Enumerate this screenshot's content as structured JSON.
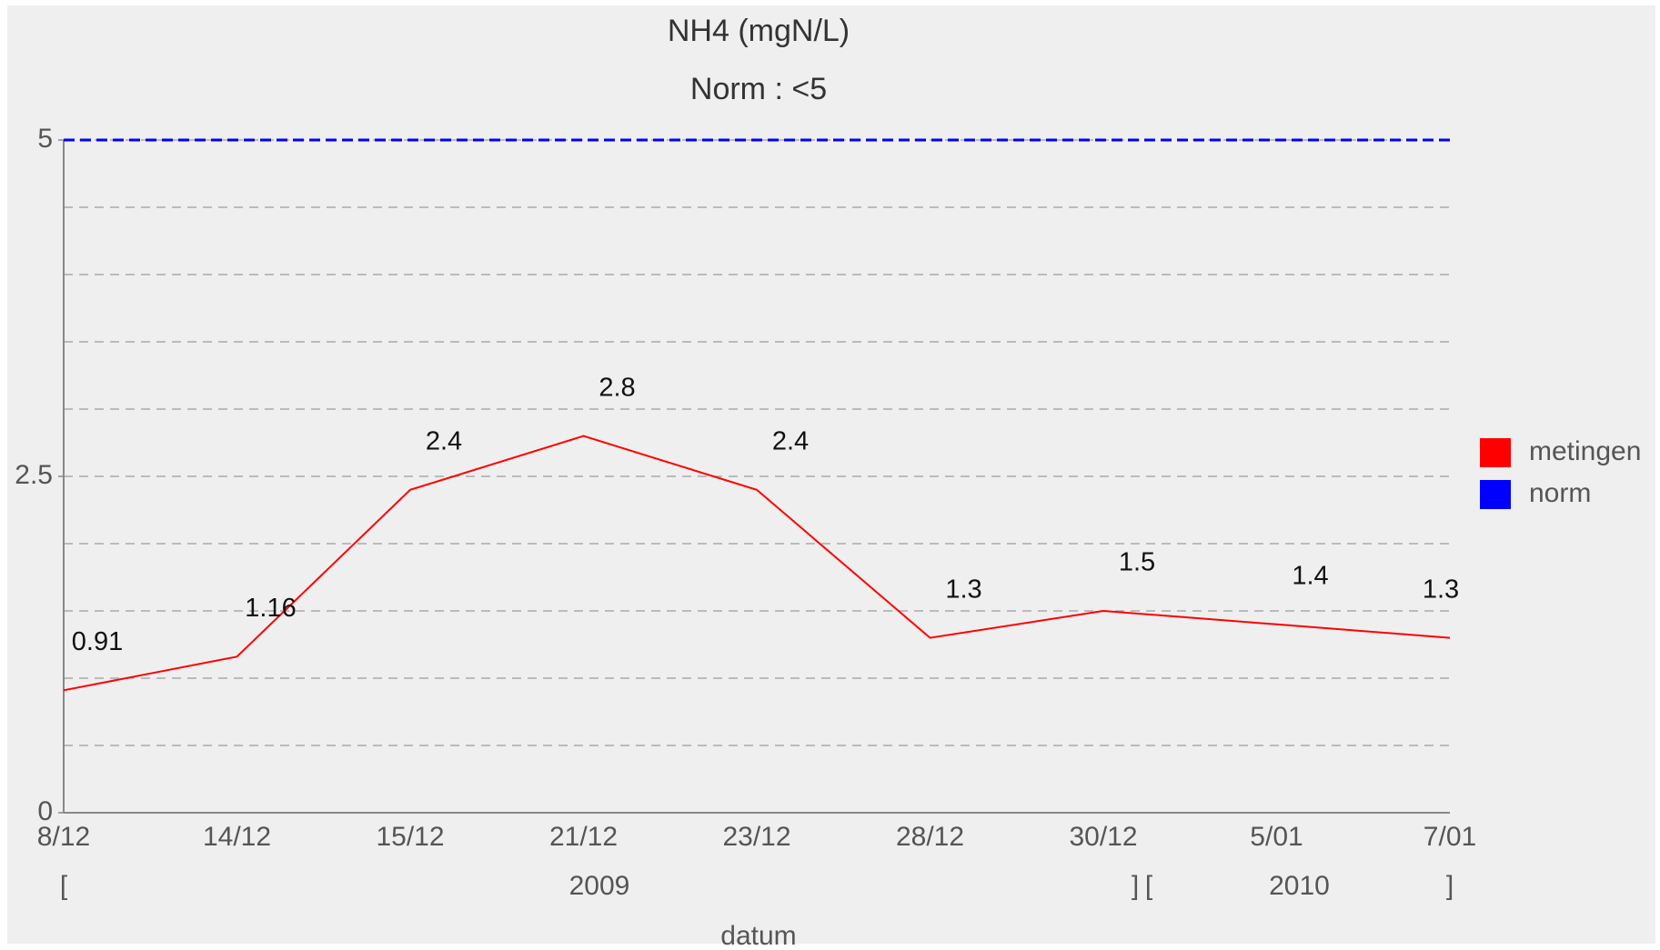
{
  "chart_data": {
    "type": "line",
    "title": "NH4 (mgN/L)",
    "subtitle": "Norm : <5",
    "x_label": "datum",
    "categories": [
      "8/12",
      "14/12",
      "15/12",
      "21/12",
      "23/12",
      "28/12",
      "30/12",
      "5/01",
      "7/01"
    ],
    "x_groups": [
      {
        "label": "2009",
        "start": "[",
        "end": "]"
      },
      {
        "label": "2010",
        "start": "[",
        "end": "]"
      }
    ],
    "series": [
      {
        "name": "metingen",
        "color": "#ff0000",
        "values": [
          0.91,
          1.16,
          2.4,
          2.8,
          2.4,
          1.3,
          1.5,
          1.4,
          1.3
        ],
        "data_labels": true
      },
      {
        "name": "norm",
        "color": "#0000ff",
        "values": [
          5,
          5,
          5,
          5,
          5,
          5,
          5,
          5,
          5
        ],
        "dashed": true
      }
    ],
    "ylim": [
      0,
      5
    ],
    "yticks": [
      0,
      2.5,
      5
    ],
    "minor_yticks": [
      0.5,
      1,
      1.5,
      2,
      3,
      3.5,
      4,
      4.5
    ],
    "grid": true,
    "legend": "right"
  }
}
